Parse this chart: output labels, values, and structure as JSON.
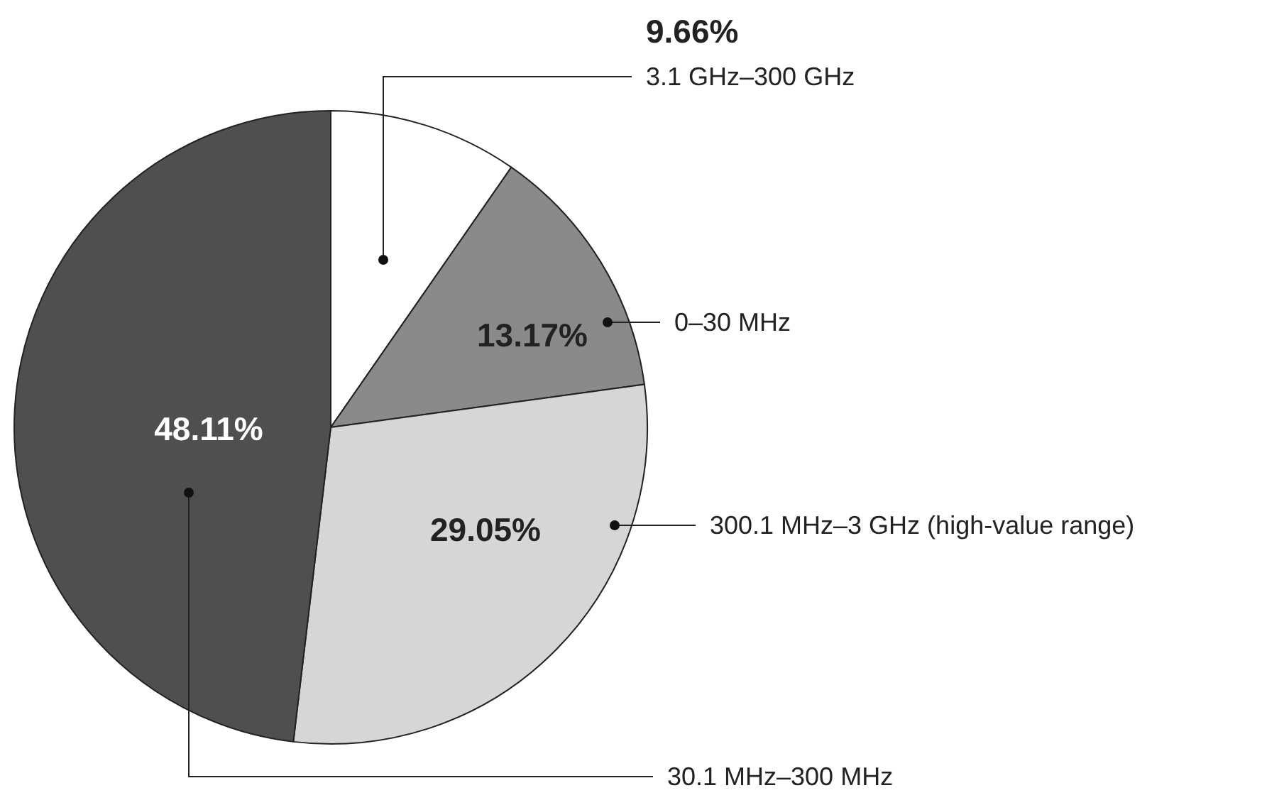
{
  "chart_data": {
    "type": "pie",
    "categories": [
      "3.1 GHz–300 GHz",
      "0–30 MHz",
      "300.1 MHz–3 GHz (high-value range)",
      "30.1 MHz–300 MHz"
    ],
    "values": [
      9.66,
      13.17,
      29.05,
      48.11
    ],
    "colors": [
      "#ffffff",
      "#8a8a8a",
      "#d6d6d6",
      "#4f4f4f"
    ],
    "value_labels": [
      "9.66%",
      "13.17%",
      "29.05%",
      "48.11%"
    ]
  }
}
